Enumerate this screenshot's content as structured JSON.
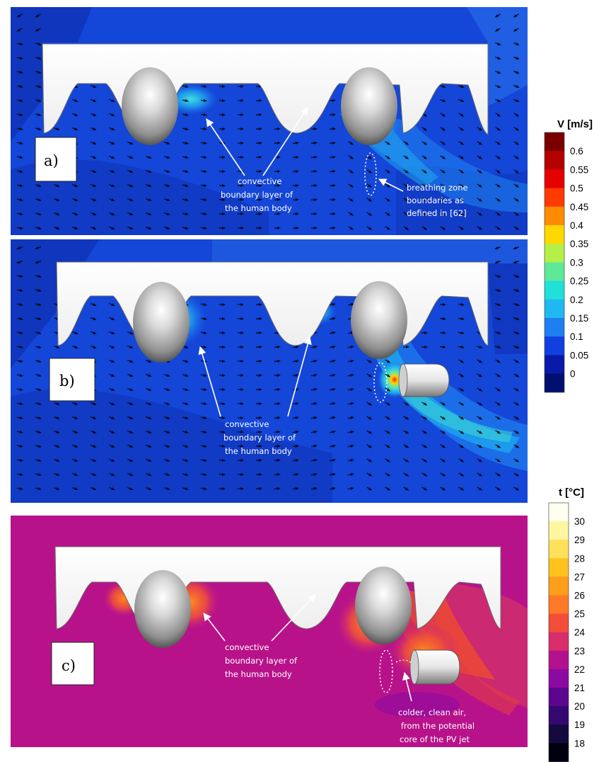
{
  "panels": [
    {
      "tag": "a)",
      "annotations": [
        "convective",
        "boundary layer of",
        "the human body"
      ],
      "annotation2": [
        "breathing zone",
        "boundaries as",
        "defined in [62]"
      ]
    },
    {
      "tag": "b)",
      "annotations": [
        "convective",
        "boundary layer of",
        "the human body"
      ]
    },
    {
      "tag": "c)",
      "annotations": [
        "convective",
        "boundary layer of",
        "the human body"
      ],
      "annotation2": [
        "colder, clean air,",
        "from the potential",
        "core of the PV jet"
      ]
    }
  ],
  "velocity_scale": {
    "title": "V [m/s]",
    "ticks": [
      "0.6",
      "0.55",
      "0.5",
      "0.45",
      "0.4",
      "0.35",
      "0.3",
      "0.25",
      "0.2",
      "0.15",
      "0.1",
      "0.05",
      "0"
    ],
    "colors": [
      "#7a0000",
      "#b50000",
      "#e50000",
      "#ff3a00",
      "#ff8c00",
      "#ffd800",
      "#b5f048",
      "#5fe89a",
      "#20e0d8",
      "#20b8f0",
      "#1e7ff0",
      "#1040e0",
      "#0a1aa8",
      "#001070"
    ]
  },
  "temperature_scale": {
    "title": "t [°C]",
    "ticks": [
      "30",
      "29",
      "28",
      "27",
      "26",
      "25",
      "24",
      "23",
      "22",
      "21",
      "20",
      "19",
      "18"
    ],
    "colors": [
      "#fffff0",
      "#fff6a0",
      "#ffe05a",
      "#ffc21e",
      "#ff9e1a",
      "#ff7a26",
      "#f24e3a",
      "#d92e6a",
      "#b2128e",
      "#8c0aa0",
      "#5c0690",
      "#340870",
      "#150a40",
      "#000010"
    ]
  }
}
